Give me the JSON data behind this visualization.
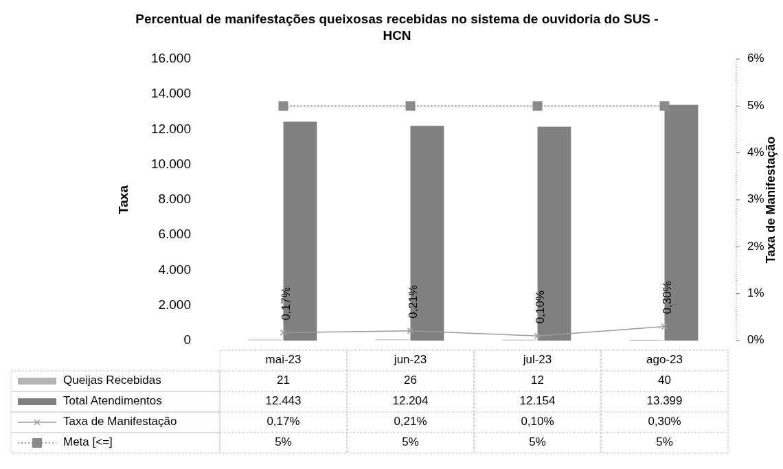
{
  "chart_data": {
    "type": "bar",
    "title": "Percentual de manifestações queixosas recebidas no sistema de ouvidoria do SUS - HCN",
    "ylabel": "Taxa",
    "y2label": "Taxa de Manifestação",
    "categories": [
      "mai-23",
      "jun-23",
      "jul-23",
      "ago-23"
    ],
    "series": [
      {
        "name": "Queijas Recebidas",
        "color": "#b4b4b4",
        "values": [
          21,
          26,
          12,
          40
        ],
        "value_labels": [
          "21",
          "26",
          "12",
          "40"
        ]
      },
      {
        "name": "Total Atendimentos",
        "color": "#808080",
        "values": [
          12443,
          12204,
          12154,
          13399
        ],
        "value_labels": [
          "12.443",
          "12.204",
          "12.154",
          "13.399"
        ]
      },
      {
        "name": "Taxa de Manifestação",
        "type": "line",
        "axis": "y2",
        "color": "#9a9a9a",
        "marker": "cross",
        "line_style": "solid",
        "values": [
          0.17,
          0.21,
          0.1,
          0.3
        ],
        "value_labels": [
          "0,17%",
          "0,21%",
          "0,10%",
          "0,30%"
        ]
      },
      {
        "name": "Meta [<=]",
        "type": "line",
        "axis": "y2",
        "color": "#8a8a8a",
        "marker": "square",
        "line_style": "dotted",
        "values": [
          5,
          5,
          5,
          5
        ],
        "value_labels": [
          "5%",
          "5%",
          "5%",
          "5%"
        ]
      }
    ],
    "ylim": [
      0,
      16000
    ],
    "yticks": [
      {
        "value": 0,
        "label": "0"
      },
      {
        "value": 2000,
        "label": "2.000"
      },
      {
        "value": 4000,
        "label": "4.000"
      },
      {
        "value": 6000,
        "label": "6.000"
      },
      {
        "value": 8000,
        "label": "8.000"
      },
      {
        "value": 10000,
        "label": "10.000"
      },
      {
        "value": 12000,
        "label": "12.000"
      },
      {
        "value": 14000,
        "label": "14.000"
      },
      {
        "value": 16000,
        "label": "16.000"
      }
    ],
    "y2lim": [
      0,
      6
    ],
    "y2ticks": [
      {
        "value": 0,
        "label": "0%"
      },
      {
        "value": 1,
        "label": "1%"
      },
      {
        "value": 2,
        "label": "2%"
      },
      {
        "value": 3,
        "label": "3%"
      },
      {
        "value": 4,
        "label": "4%"
      },
      {
        "value": 5,
        "label": "5%"
      },
      {
        "value": 6,
        "label": "6%"
      }
    ],
    "legend": "bottom",
    "grid": false
  }
}
